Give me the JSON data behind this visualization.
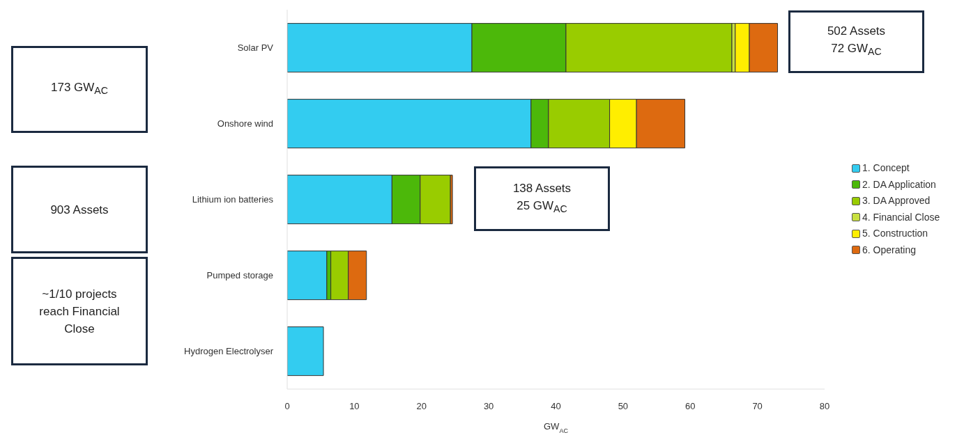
{
  "chart_data": {
    "type": "bar",
    "orientation": "horizontal",
    "stacked": true,
    "xlabel": "GW$_{AC}$",
    "categories": [
      "Solar PV",
      "Onshore wind",
      "Lithium ion batteries",
      "Pumped storage",
      "Hydrogen Electrolyser"
    ],
    "series": [
      {
        "name": "1. Concept",
        "color": "#33ccf0",
        "values": [
          27.5,
          36.3,
          15.6,
          5.9,
          5.4
        ]
      },
      {
        "name": "2. DA Application",
        "color": "#4cb80a",
        "values": [
          14.0,
          2.6,
          4.2,
          0.6,
          0
        ]
      },
      {
        "name": "3. DA Approved",
        "color": "#99cc00",
        "values": [
          24.7,
          9.1,
          4.5,
          2.6,
          0
        ]
      },
      {
        "name": "4. Financial Close",
        "color": "#c8e040",
        "values": [
          0.5,
          0,
          null,
          0,
          0
        ]
      },
      {
        "name": "5. Construction",
        "color": "#ffee00",
        "values": [
          2.1,
          4.0,
          0,
          0,
          0
        ]
      },
      {
        "name": "6. Operating",
        "color": "#dd6a10",
        "values": [
          4.2,
          7.2,
          0.3,
          2.7,
          0
        ]
      }
    ],
    "xlim": [
      0,
      80
    ],
    "xticks": [
      0,
      10,
      20,
      30,
      40,
      50,
      60,
      70,
      80
    ],
    "grid": false,
    "legend": "right",
    "annotations": [
      "173 GW$_{AC}$",
      "903 Assets",
      "~1/10 projects reach Financial Close",
      "502 Assets\n72 GW$_{AC}$",
      "138 Assets\n25 GW$_{AC}$"
    ]
  }
}
